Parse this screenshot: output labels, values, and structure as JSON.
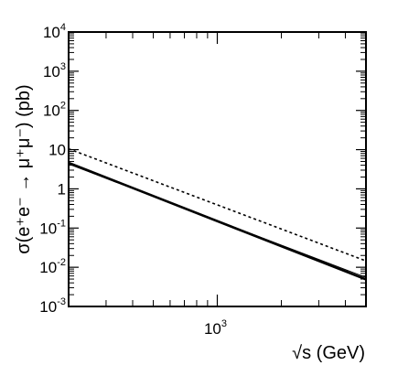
{
  "chart_data": {
    "type": "line",
    "xlabel": "√s (GeV)",
    "ylabel": "σ(e⁺e⁻ → μ⁺μ⁻) (pb)",
    "xscale": "log",
    "yscale": "log",
    "xlim": [
      200,
      5000
    ],
    "ylim": [
      0.001,
      10000
    ],
    "x_tick_major": [
      {
        "value": 1000,
        "base": "10",
        "exp": "3"
      }
    ],
    "y_ticks": [
      {
        "value": 0.001,
        "base": "10",
        "exp": "-3"
      },
      {
        "value": 0.01,
        "base": "10",
        "exp": "-2"
      },
      {
        "value": 0.1,
        "base": "10",
        "exp": "-1"
      },
      {
        "value": 1,
        "base": "1",
        "exp": ""
      },
      {
        "value": 10,
        "base": "10",
        "exp": ""
      },
      {
        "value": 100,
        "base": "10",
        "exp": "2"
      },
      {
        "value": 1000,
        "base": "10",
        "exp": "3"
      },
      {
        "value": 10000,
        "base": "10",
        "exp": "4"
      }
    ],
    "grid": false,
    "series": [
      {
        "style": "dotted",
        "x": [
          200,
          5000
        ],
        "y": [
          10.5,
          0.0145
        ]
      },
      {
        "style": "thick-solid",
        "x": [
          200,
          5000
        ],
        "y": [
          4.6,
          0.0049
        ]
      },
      {
        "style": "thin-solid",
        "x": [
          200,
          5000
        ],
        "y": [
          4.3,
          0.0055
        ]
      }
    ]
  }
}
